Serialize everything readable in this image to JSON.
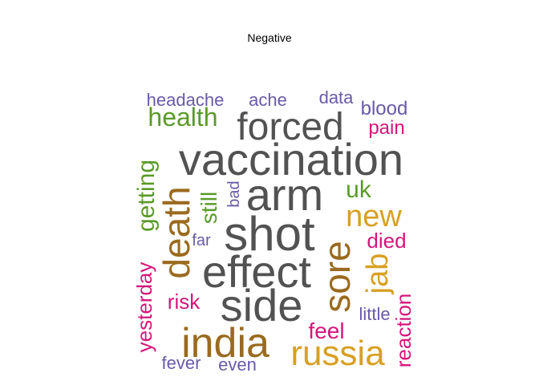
{
  "title": "Negative",
  "colors": {
    "gray": "#525252",
    "brown": "#9a6a1e",
    "gold": "#d8a022",
    "green": "#5a9a2a",
    "purple": "#6a5aa8",
    "pink": "#d6157a"
  },
  "words": [
    {
      "text": "shot",
      "color": "gray"
    },
    {
      "text": "vaccination",
      "color": "gray"
    },
    {
      "text": "arm",
      "color": "gray"
    },
    {
      "text": "effect",
      "color": "gray"
    },
    {
      "text": "side",
      "color": "gray"
    },
    {
      "text": "forced",
      "color": "gray"
    },
    {
      "text": "india",
      "color": "brown"
    },
    {
      "text": "death",
      "color": "brown"
    },
    {
      "text": "sore",
      "color": "brown"
    },
    {
      "text": "russia",
      "color": "gold"
    },
    {
      "text": "new",
      "color": "gold"
    },
    {
      "text": "jab",
      "color": "gold"
    },
    {
      "text": "health",
      "color": "green"
    },
    {
      "text": "getting",
      "color": "green"
    },
    {
      "text": "still",
      "color": "green"
    },
    {
      "text": "uk",
      "color": "green"
    },
    {
      "text": "headache",
      "color": "purple"
    },
    {
      "text": "ache",
      "color": "purple"
    },
    {
      "text": "data",
      "color": "purple"
    },
    {
      "text": "blood",
      "color": "purple"
    },
    {
      "text": "bad",
      "color": "purple"
    },
    {
      "text": "far",
      "color": "purple"
    },
    {
      "text": "little",
      "color": "purple"
    },
    {
      "text": "fever",
      "color": "purple"
    },
    {
      "text": "even",
      "color": "purple"
    },
    {
      "text": "pain",
      "color": "pink"
    },
    {
      "text": "died",
      "color": "pink"
    },
    {
      "text": "risk",
      "color": "pink"
    },
    {
      "text": "feel",
      "color": "pink"
    },
    {
      "text": "yesterday",
      "color": "pink"
    },
    {
      "text": "reaction",
      "color": "pink"
    }
  ]
}
